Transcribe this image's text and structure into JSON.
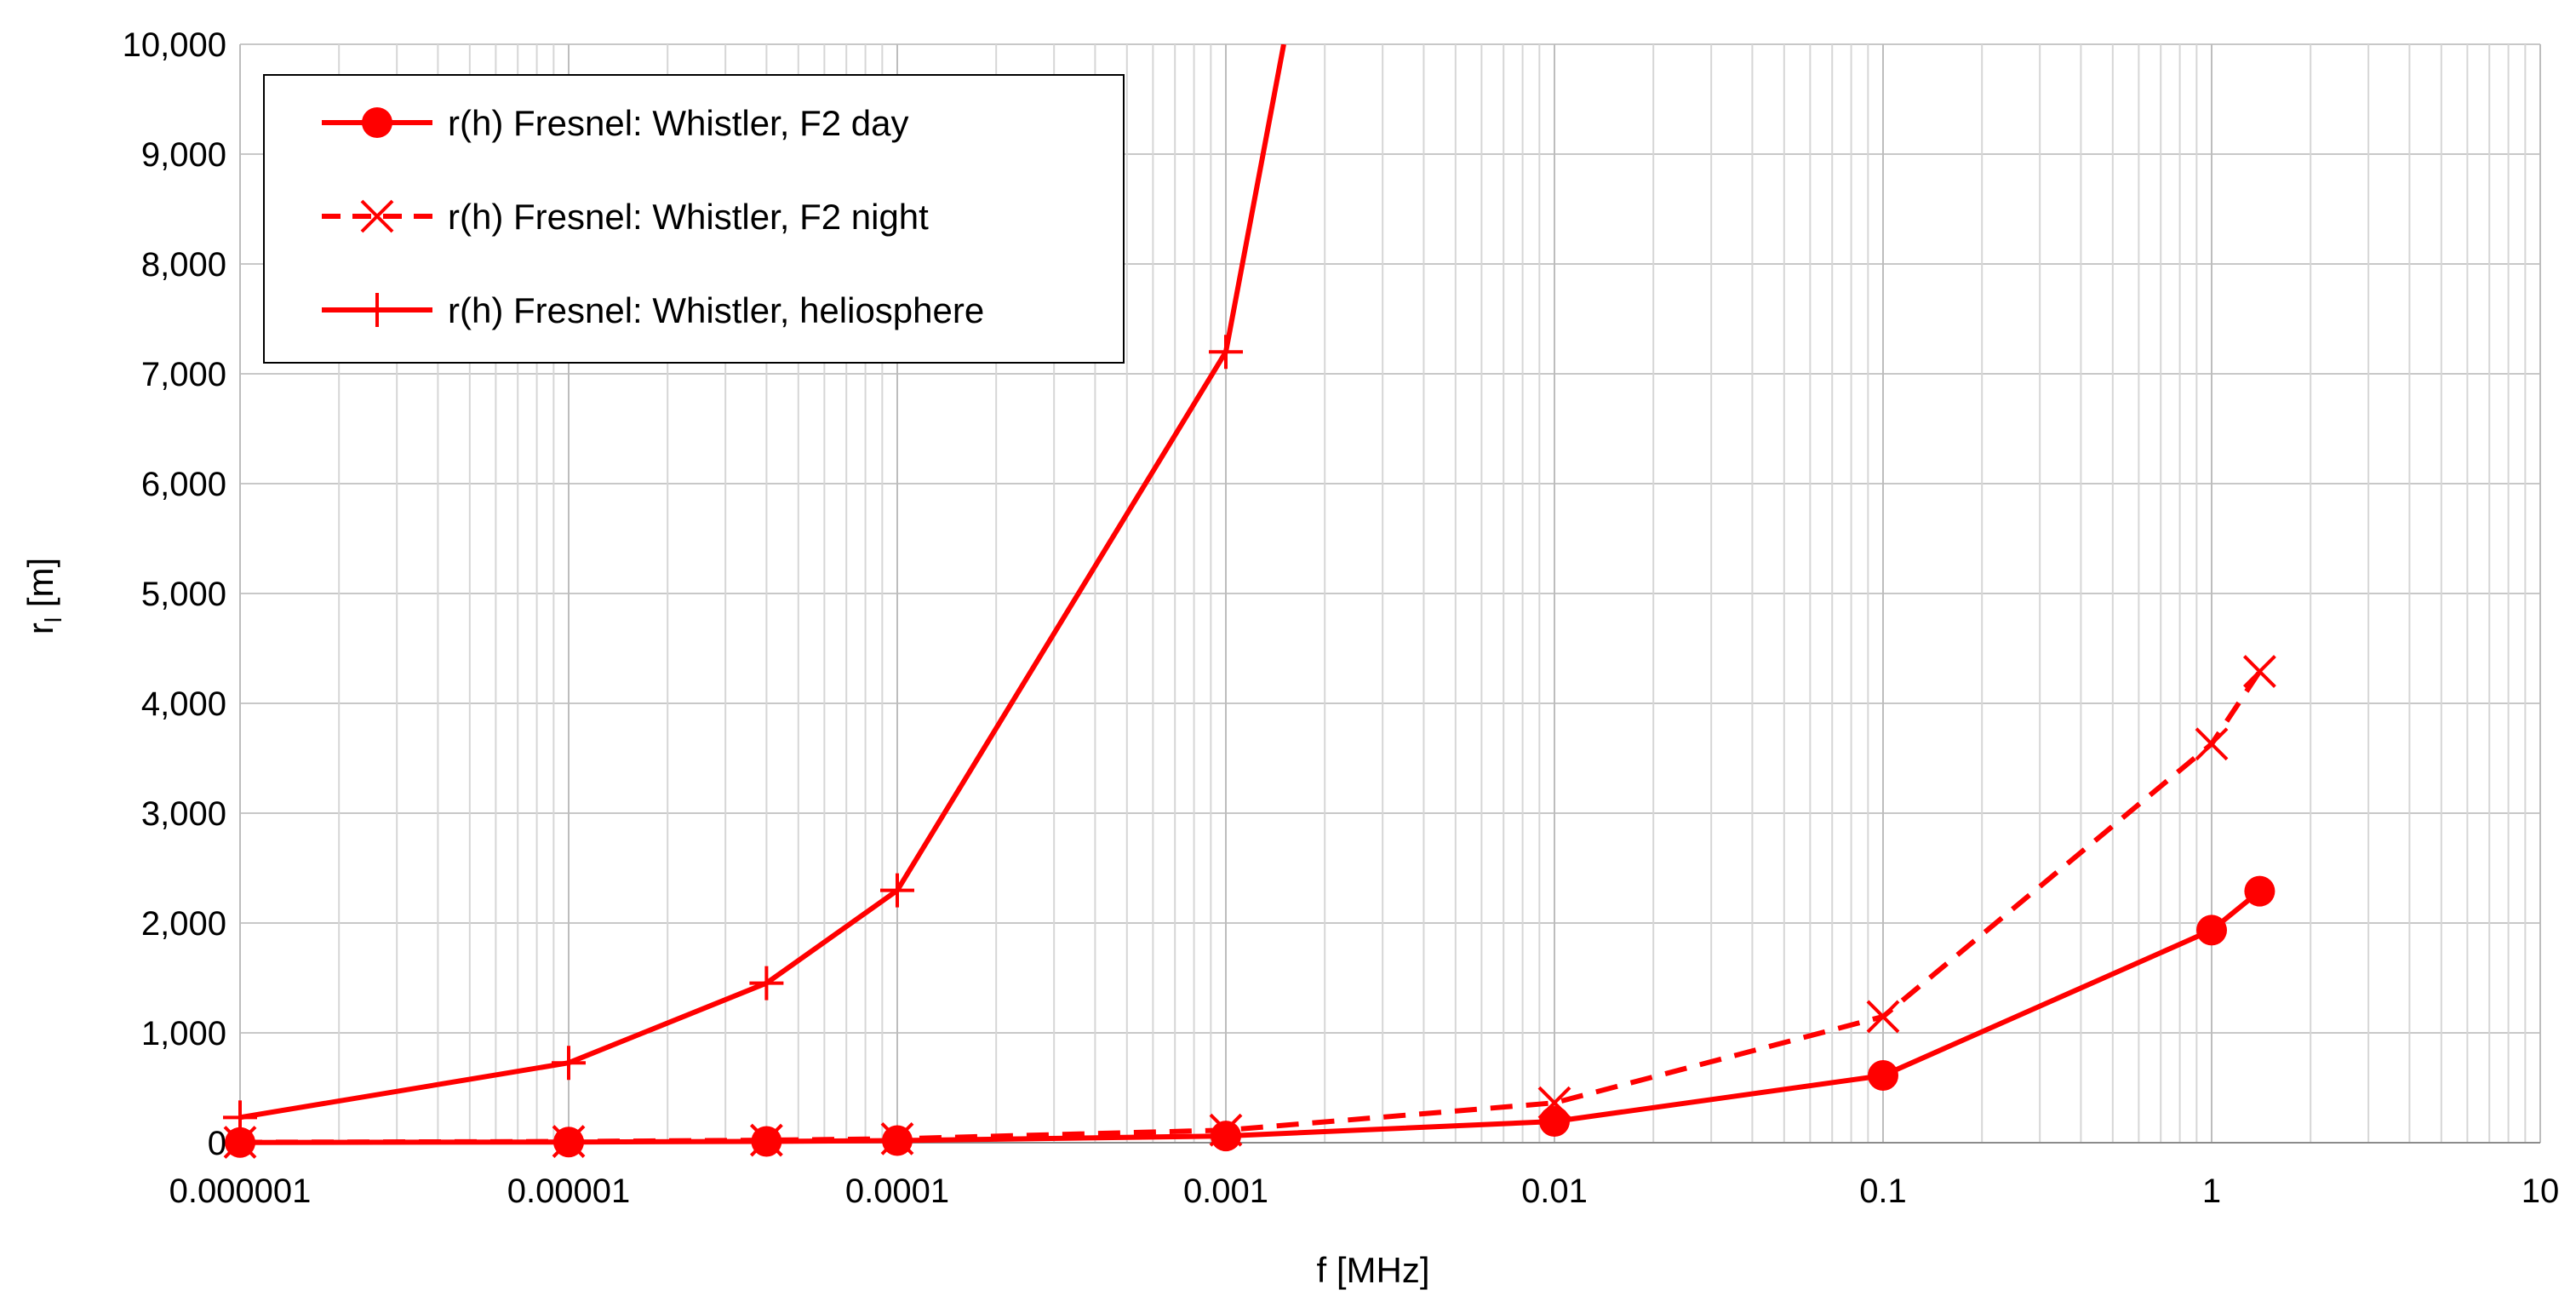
{
  "chart_data": {
    "type": "line",
    "xlabel": "f [MHz]",
    "ylabel": "r_l [m]",
    "ylabel_main": "r",
    "ylabel_sub": "l",
    "ylabel_unit": " [m]",
    "x_scale": "log",
    "xlim": [
      1e-06,
      10
    ],
    "ylim": [
      0,
      10000
    ],
    "x_ticks": [
      1e-06,
      1e-05,
      0.0001,
      0.001,
      0.01,
      0.1,
      1,
      10
    ],
    "x_tick_labels": [
      "0.000001",
      "0.00001",
      "0.0001",
      "0.001",
      "0.01",
      "0.1",
      "1",
      "10"
    ],
    "y_ticks": [
      0,
      1000,
      2000,
      3000,
      4000,
      5000,
      6000,
      7000,
      8000,
      9000,
      10000
    ],
    "y_tick_labels": [
      "0",
      "1,000",
      "2,000",
      "3,000",
      "4,000",
      "5,000",
      "6,000",
      "7,000",
      "8,000",
      "9,000",
      "10,000"
    ],
    "grid": true,
    "legend_position": "top-left",
    "series": [
      {
        "name": "r(h) Fresnel: Whistler, F2 day",
        "color": "#ff0000",
        "line_style": "solid",
        "marker": "circle",
        "x": [
          1e-06,
          1e-05,
          4e-05,
          0.0001,
          0.001,
          0.01,
          0.1,
          1,
          1.4
        ],
        "y": [
          2,
          6,
          12,
          19,
          61,
          194,
          612,
          1935,
          2290
        ]
      },
      {
        "name": "r(h) Fresnel: Whistler, F2 night",
        "color": "#ff0000",
        "line_style": "dashed",
        "marker": "x",
        "x": [
          1e-06,
          1e-05,
          4e-05,
          0.0001,
          0.001,
          0.01,
          0.1,
          1,
          1.4
        ],
        "y": [
          4,
          11,
          23,
          36,
          115,
          363,
          1148,
          3630,
          4290
        ]
      },
      {
        "name": "r(h) Fresnel: Whistler, heliosphere",
        "color": "#ff0000",
        "line_style": "solid",
        "marker": "plus",
        "x": [
          1e-06,
          1e-05,
          4e-05,
          0.0001,
          0.001,
          0.0015
        ],
        "y": [
          230,
          727,
          1453,
          2297,
          7200,
          10000
        ]
      }
    ]
  }
}
